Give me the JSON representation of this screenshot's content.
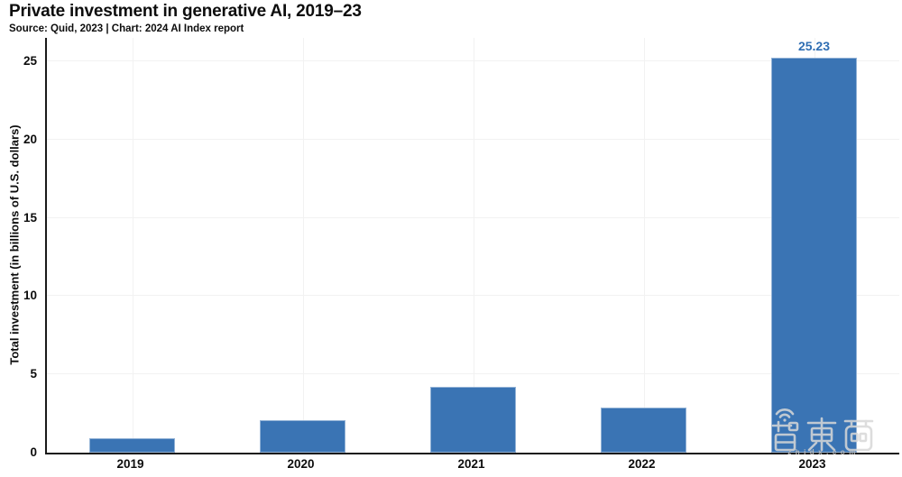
{
  "title": "Private investment in generative AI, 2019–23",
  "subtitle": "Source: Quid, 2023 | Chart: 2024 AI Index report",
  "watermark": {
    "text": "智東西",
    "subtext": "zhidx.com"
  },
  "chart_data": {
    "type": "bar",
    "title": "Private investment in generative AI, 2019–23",
    "source": "Source: Quid, 2023 | Chart: 2024 AI Index report",
    "categories": [
      "2019",
      "2020",
      "2021",
      "2022",
      "2023"
    ],
    "values": [
      0.9,
      2.1,
      4.2,
      2.9,
      25.23
    ],
    "value_labels": [
      "",
      "",
      "",
      "",
      "25.23"
    ],
    "xlabel": "",
    "ylabel": "Total investment (in billions of U.S. dollars)",
    "ylim": [
      0,
      26.5
    ],
    "yticks": [
      0,
      5,
      10,
      15,
      20,
      25
    ],
    "grid": true,
    "legend": "none",
    "colors": {
      "bar": "#3a74b4",
      "value_label": "#2f6eb3",
      "axis": "#1a1a1a",
      "gridline": "#f2f2f2",
      "text": "#0d0d0d"
    }
  }
}
